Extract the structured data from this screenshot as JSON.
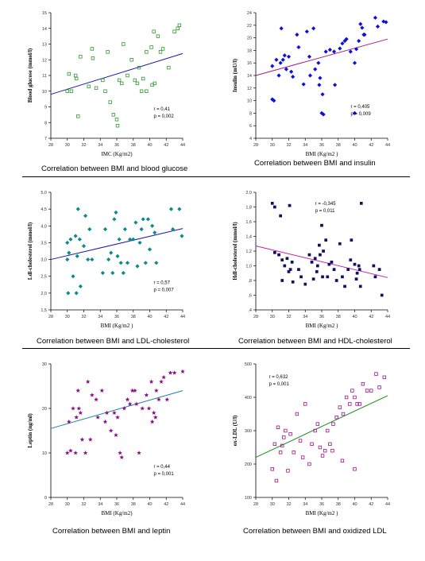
{
  "chart_data": [
    {
      "type": "scatter",
      "title": "",
      "caption": "Correlation between BMI and blood glucose",
      "xlabel": "IMC (Kg/m2)",
      "ylabel": "Blood glucose (mmol/l)",
      "xlim": [
        28,
        66
      ],
      "ylim": [
        7,
        15
      ],
      "xticks": [
        "28",
        "30",
        "32",
        "34",
        "36",
        "38",
        "40",
        "42",
        "44"
      ],
      "yticks": [
        "7",
        "8",
        "9",
        "10",
        "11",
        "12",
        "13",
        "14",
        "15"
      ],
      "marker": "square",
      "color": "#2e9a2e",
      "line_color": "#1a1aa8",
      "trend": [
        [
          28,
          9.8
        ],
        [
          44,
          12.4
        ]
      ],
      "annotation": [
        "r = 0,41",
        "p = 0,002"
      ],
      "points": [
        [
          30,
          10.0
        ],
        [
          30.2,
          11.1
        ],
        [
          30.5,
          10.0
        ],
        [
          31,
          11.0
        ],
        [
          31.1,
          10.8
        ],
        [
          31.3,
          8.4
        ],
        [
          31.6,
          12.2
        ],
        [
          32.6,
          10.3
        ],
        [
          33,
          12.7
        ],
        [
          33.1,
          12.1
        ],
        [
          33.5,
          10.2
        ],
        [
          34.3,
          10.7
        ],
        [
          34.6,
          10.0
        ],
        [
          34.9,
          12.5
        ],
        [
          35.2,
          9.3
        ],
        [
          35.6,
          8.5
        ],
        [
          36,
          8.2
        ],
        [
          36.1,
          7.8
        ],
        [
          36.3,
          10.7
        ],
        [
          36.6,
          10.5
        ],
        [
          36.8,
          13.0
        ],
        [
          37.3,
          11.0
        ],
        [
          37.8,
          12.0
        ],
        [
          38.2,
          10.7
        ],
        [
          38.5,
          10.5
        ],
        [
          38.7,
          11.5
        ],
        [
          39,
          10.0
        ],
        [
          39.2,
          10.8
        ],
        [
          39.6,
          10.0
        ],
        [
          39.6,
          12.5
        ],
        [
          40.2,
          12.8
        ],
        [
          40.3,
          10.4
        ],
        [
          40.5,
          13.8
        ],
        [
          41,
          13.5
        ],
        [
          41.3,
          12.5
        ],
        [
          41.6,
          12.7
        ],
        [
          42.3,
          11.5
        ],
        [
          43,
          13.8
        ],
        [
          43.4,
          14.0
        ],
        [
          43.6,
          14.2
        ],
        [
          40.6,
          10.5
        ]
      ]
    },
    {
      "type": "scatter",
      "title": "",
      "caption": "Correlation between BMI and insulin",
      "xlabel": "BMI (Kg/m2 )",
      "ylabel": "Insulin (mU/l)",
      "xlim": [
        28,
        66
      ],
      "ylim": [
        4,
        24
      ],
      "xticks": [
        "28",
        "30",
        "32",
        "34",
        "36",
        "38",
        "40",
        "42",
        "44"
      ],
      "yticks": [
        "4",
        "6",
        "8",
        "10",
        "12",
        "14",
        "16",
        "18",
        "20",
        "22",
        "24"
      ],
      "marker": "diamond",
      "color": "#1010d8",
      "line_color": "#a0208a",
      "trend": [
        [
          28,
          14.0
        ],
        [
          44,
          19.8
        ]
      ],
      "annotation": [
        "r = 0,405",
        "p = 0,009"
      ],
      "points": [
        [
          30,
          15.5
        ],
        [
          30,
          10.2
        ],
        [
          30.2,
          10
        ],
        [
          30.5,
          16.5
        ],
        [
          30.8,
          14
        ],
        [
          31,
          16
        ],
        [
          31.1,
          21.5
        ],
        [
          31.3,
          16.5
        ],
        [
          31.5,
          17.2
        ],
        [
          31.7,
          15
        ],
        [
          32,
          17
        ],
        [
          32.3,
          14.6
        ],
        [
          32.5,
          13.8
        ],
        [
          33,
          20.5
        ],
        [
          33.2,
          18.5
        ],
        [
          33.8,
          12.6
        ],
        [
          34.2,
          21
        ],
        [
          34.5,
          17
        ],
        [
          34.6,
          14
        ],
        [
          35,
          21.5
        ],
        [
          35.2,
          15
        ],
        [
          35.6,
          16
        ],
        [
          35.7,
          12.5
        ],
        [
          35.8,
          13.6
        ],
        [
          36,
          8.0
        ],
        [
          36.1,
          11
        ],
        [
          36.2,
          7.8
        ],
        [
          36.5,
          17.8
        ],
        [
          37,
          18.1
        ],
        [
          37.5,
          17.8
        ],
        [
          37.6,
          12.5
        ],
        [
          38.2,
          18.3
        ],
        [
          38.5,
          19.1
        ],
        [
          38.8,
          19.5
        ],
        [
          39,
          19.8
        ],
        [
          39.5,
          17.8
        ],
        [
          40,
          16
        ],
        [
          40.2,
          18.2
        ],
        [
          40.5,
          19.5
        ],
        [
          40.7,
          22.2
        ],
        [
          40.9,
          21.6
        ],
        [
          41.1,
          20.5
        ],
        [
          41.2,
          20.5
        ],
        [
          42.5,
          23.2
        ],
        [
          42.8,
          21.8
        ],
        [
          43.5,
          22.6
        ],
        [
          43.8,
          22.5
        ],
        [
          40,
          8.0
        ]
      ]
    },
    {
      "type": "scatter",
      "title": "",
      "caption": "Correlation between BMI and LDL-cholesterol",
      "xlabel": "BMI (Kg/m2 )",
      "ylabel": "Ldl-cholesterol (mmol/l)",
      "xlim": [
        28,
        66
      ],
      "ylim": [
        1.5,
        5.0
      ],
      "xticks": [
        "28",
        "30",
        "32",
        "34",
        "36",
        "38",
        "40",
        "42",
        "44"
      ],
      "yticks": [
        "1,5",
        "2,0",
        "2,5",
        "3,0",
        "3,5",
        "4,0",
        "4,5",
        "5,0"
      ],
      "marker": "diamond",
      "color": "#0e8a8a",
      "line_color": "#1a1aa8",
      "trend": [
        [
          28,
          3.0
        ],
        [
          44,
          3.92
        ]
      ],
      "annotation": [
        "r = 0,57",
        "p = 0,007"
      ],
      "points": [
        [
          30,
          3.5
        ],
        [
          30,
          3.0
        ],
        [
          30.1,
          2.0
        ],
        [
          30.2,
          3.2
        ],
        [
          30.4,
          3.6
        ],
        [
          30.7,
          2.5
        ],
        [
          31,
          3.7
        ],
        [
          31.1,
          2.0
        ],
        [
          31.2,
          3.1
        ],
        [
          31.3,
          4.5
        ],
        [
          31.5,
          3.6
        ],
        [
          31.6,
          2.2
        ],
        [
          32,
          3.4
        ],
        [
          32.2,
          4.3
        ],
        [
          32.5,
          3.0
        ],
        [
          32.7,
          3.9
        ],
        [
          33,
          3.0
        ],
        [
          34.3,
          2.6
        ],
        [
          34.6,
          3.9
        ],
        [
          35,
          3.0
        ],
        [
          35.3,
          3.2
        ],
        [
          35.5,
          2.6
        ],
        [
          35.7,
          4.2
        ],
        [
          35.9,
          4.4
        ],
        [
          36.1,
          3.1
        ],
        [
          36.3,
          3.6
        ],
        [
          36.5,
          2.9
        ],
        [
          36.8,
          2.6
        ],
        [
          37,
          3.9
        ],
        [
          37.3,
          2.9
        ],
        [
          37.6,
          3.6
        ],
        [
          38,
          3.6
        ],
        [
          38.3,
          4.1
        ],
        [
          38.5,
          2.8
        ],
        [
          38.8,
          3.5
        ],
        [
          39,
          3.9
        ],
        [
          39.2,
          4.2
        ],
        [
          39.5,
          2.9
        ],
        [
          39.8,
          4.2
        ],
        [
          40,
          3.3
        ],
        [
          40.3,
          4.0
        ],
        [
          40.6,
          3.8
        ],
        [
          40.8,
          2.9
        ],
        [
          42.6,
          4.5
        ],
        [
          42.8,
          3.9
        ],
        [
          43.6,
          4.5
        ],
        [
          43.9,
          3.7
        ]
      ]
    },
    {
      "type": "scatter",
      "title": "",
      "caption": "Correlation between BMI and HDL-cholesterol",
      "xlabel": "BMI (Kg/m2 )",
      "ylabel": "Hdl-cholesterol (mmol/l)",
      "xlim": [
        28,
        66
      ],
      "ylim": [
        0.4,
        2.0
      ],
      "xticks": [
        "28",
        "30",
        "32",
        "34",
        "36",
        "38",
        "40",
        "42",
        "44"
      ],
      "yticks": [
        ",4",
        ",6",
        ",8",
        "1,0",
        "1,2",
        "1,4",
        "1,6",
        "1,8",
        "2,0"
      ],
      "marker": "square-filled",
      "color": "#101060",
      "line_color": "#c020a8",
      "trend": [
        [
          28,
          1.27
        ],
        [
          44,
          0.84
        ]
      ],
      "annotation": [
        "r = -0,345",
        "p = 0,011"
      ],
      "points": [
        [
          30,
          1.85
        ],
        [
          30.3,
          1.8
        ],
        [
          30.3,
          1.18
        ],
        [
          30.8,
          1.15
        ],
        [
          31,
          1.68
        ],
        [
          31.2,
          1.08
        ],
        [
          31.2,
          0.8
        ],
        [
          31.5,
          1.0
        ],
        [
          31.8,
          1.1
        ],
        [
          32,
          0.92
        ],
        [
          32.1,
          1.82
        ],
        [
          32.2,
          0.95
        ],
        [
          32.4,
          1.05
        ],
        [
          32.5,
          0.78
        ],
        [
          33.2,
          0.95
        ],
        [
          33.5,
          0.85
        ],
        [
          34,
          0.75
        ],
        [
          34.5,
          1.15
        ],
        [
          34.8,
          1.05
        ],
        [
          35,
          0.82
        ],
        [
          35.2,
          1.1
        ],
        [
          35.4,
          0.92
        ],
        [
          35.5,
          1.0
        ],
        [
          35.7,
          1.28
        ],
        [
          35.8,
          1.15
        ],
        [
          36,
          1.55
        ],
        [
          36.1,
          0.85
        ],
        [
          36.2,
          1.2
        ],
        [
          36.5,
          1.35
        ],
        [
          36.7,
          0.85
        ],
        [
          36.9,
          1.02
        ],
        [
          37.2,
          1.05
        ],
        [
          37.5,
          0.95
        ],
        [
          37.8,
          0.8
        ],
        [
          38.2,
          1.3
        ],
        [
          38.5,
          0.85
        ],
        [
          38.8,
          0.72
        ],
        [
          39.2,
          0.95
        ],
        [
          39.5,
          1.08
        ],
        [
          39.6,
          1.35
        ],
        [
          40,
          1.02
        ],
        [
          40.2,
          0.82
        ],
        [
          40.3,
          0.9
        ],
        [
          40.5,
          1.0
        ],
        [
          40.6,
          0.95
        ],
        [
          40.7,
          0.72
        ],
        [
          40.8,
          1.85
        ],
        [
          42.5,
          0.85
        ],
        [
          43,
          0.95
        ],
        [
          43.3,
          0.6
        ],
        [
          42.3,
          1.0
        ]
      ]
    },
    {
      "type": "scatter",
      "title": "",
      "caption": "Correlation between BMI and leptin",
      "xlabel": "BMI (Kg/m2)",
      "ylabel": "Leptin (ng/ml)",
      "xlim": [
        28,
        66
      ],
      "ylim": [
        0,
        30
      ],
      "xticks": [
        "28",
        "30",
        "32",
        "34",
        "36",
        "38",
        "40",
        "42",
        "44"
      ],
      "yticks": [
        "0",
        "10",
        "20",
        "30"
      ],
      "marker": "star",
      "color": "#8a108a",
      "line_color": "#1a80a8",
      "trend": [
        [
          28,
          15.5
        ],
        [
          44,
          24.0
        ]
      ],
      "annotation": [
        "r = 0,44",
        "p = 0,001"
      ],
      "points": [
        [
          30,
          10
        ],
        [
          30.2,
          17
        ],
        [
          30.4,
          10.5
        ],
        [
          30.7,
          20
        ],
        [
          31,
          10
        ],
        [
          31.1,
          18
        ],
        [
          31.3,
          24
        ],
        [
          31.4,
          20
        ],
        [
          31.6,
          19
        ],
        [
          31.8,
          13
        ],
        [
          32.2,
          10
        ],
        [
          32.5,
          26
        ],
        [
          32.8,
          13
        ],
        [
          33,
          23
        ],
        [
          33.5,
          22
        ],
        [
          33.7,
          18
        ],
        [
          34.2,
          24
        ],
        [
          34.6,
          17
        ],
        [
          34.8,
          19
        ],
        [
          35.3,
          15
        ],
        [
          35.7,
          19
        ],
        [
          35.9,
          14
        ],
        [
          36.1,
          18
        ],
        [
          36.4,
          10
        ],
        [
          36.6,
          9
        ],
        [
          36.9,
          20
        ],
        [
          37.3,
          22
        ],
        [
          37.6,
          21
        ],
        [
          37.9,
          24
        ],
        [
          38.4,
          21
        ],
        [
          38.7,
          10
        ],
        [
          39.1,
          20
        ],
        [
          39.6,
          23
        ],
        [
          39.9,
          20
        ],
        [
          40.2,
          26
        ],
        [
          40.5,
          19
        ],
        [
          40.8,
          24
        ],
        [
          41.1,
          22
        ],
        [
          41.4,
          26
        ],
        [
          41.7,
          27
        ],
        [
          42.1,
          22
        ],
        [
          42.5,
          28
        ],
        [
          43,
          28
        ],
        [
          44,
          28.3
        ],
        [
          40.3,
          17
        ],
        [
          40.7,
          18
        ],
        [
          38.2,
          24
        ]
      ]
    },
    {
      "type": "scatter",
      "title": "",
      "caption": "Correlation between BMI and oxidized LDL",
      "xlabel": "BMI (Kg/m2 )",
      "ylabel": "ox-LDL (U/l)",
      "xlim": [
        28,
        66
      ],
      "ylim": [
        100,
        500
      ],
      "xticks": [
        "28",
        "30",
        "32",
        "34",
        "36",
        "38",
        "40",
        "42",
        "44"
      ],
      "yticks": [
        "100",
        "200",
        "300",
        "400",
        "500"
      ],
      "marker": "square",
      "color": "#a0108a",
      "line_color": "#1a8a1a",
      "trend": [
        [
          28,
          220
        ],
        [
          44,
          405
        ]
      ],
      "annotation": [
        "r = 0,632",
        "p = 0,001"
      ],
      "points": [
        [
          30,
          185
        ],
        [
          30.3,
          260
        ],
        [
          30.5,
          150
        ],
        [
          30.7,
          310
        ],
        [
          31,
          235
        ],
        [
          31.2,
          255
        ],
        [
          31.4,
          280
        ],
        [
          31.6,
          300
        ],
        [
          31.9,
          180
        ],
        [
          32.2,
          290
        ],
        [
          32.6,
          235
        ],
        [
          33,
          350
        ],
        [
          33.4,
          270
        ],
        [
          33.7,
          220
        ],
        [
          34,
          380
        ],
        [
          34.5,
          200
        ],
        [
          34.8,
          260
        ],
        [
          35.2,
          300
        ],
        [
          35.5,
          320
        ],
        [
          35.8,
          250
        ],
        [
          36.1,
          225
        ],
        [
          36.4,
          240
        ],
        [
          36.7,
          300
        ],
        [
          37,
          260
        ],
        [
          37.4,
          320
        ],
        [
          37.8,
          340
        ],
        [
          38.2,
          370
        ],
        [
          38.6,
          350
        ],
        [
          39,
          400
        ],
        [
          39.4,
          380
        ],
        [
          39.7,
          420
        ],
        [
          40,
          400
        ],
        [
          40.3,
          380
        ],
        [
          40.6,
          380
        ],
        [
          41,
          440
        ],
        [
          41.5,
          420
        ],
        [
          42,
          420
        ],
        [
          42.6,
          470
        ],
        [
          43,
          430
        ],
        [
          43.6,
          460
        ],
        [
          40,
          185
        ],
        [
          38.5,
          210
        ],
        [
          37.3,
          240
        ]
      ]
    }
  ]
}
